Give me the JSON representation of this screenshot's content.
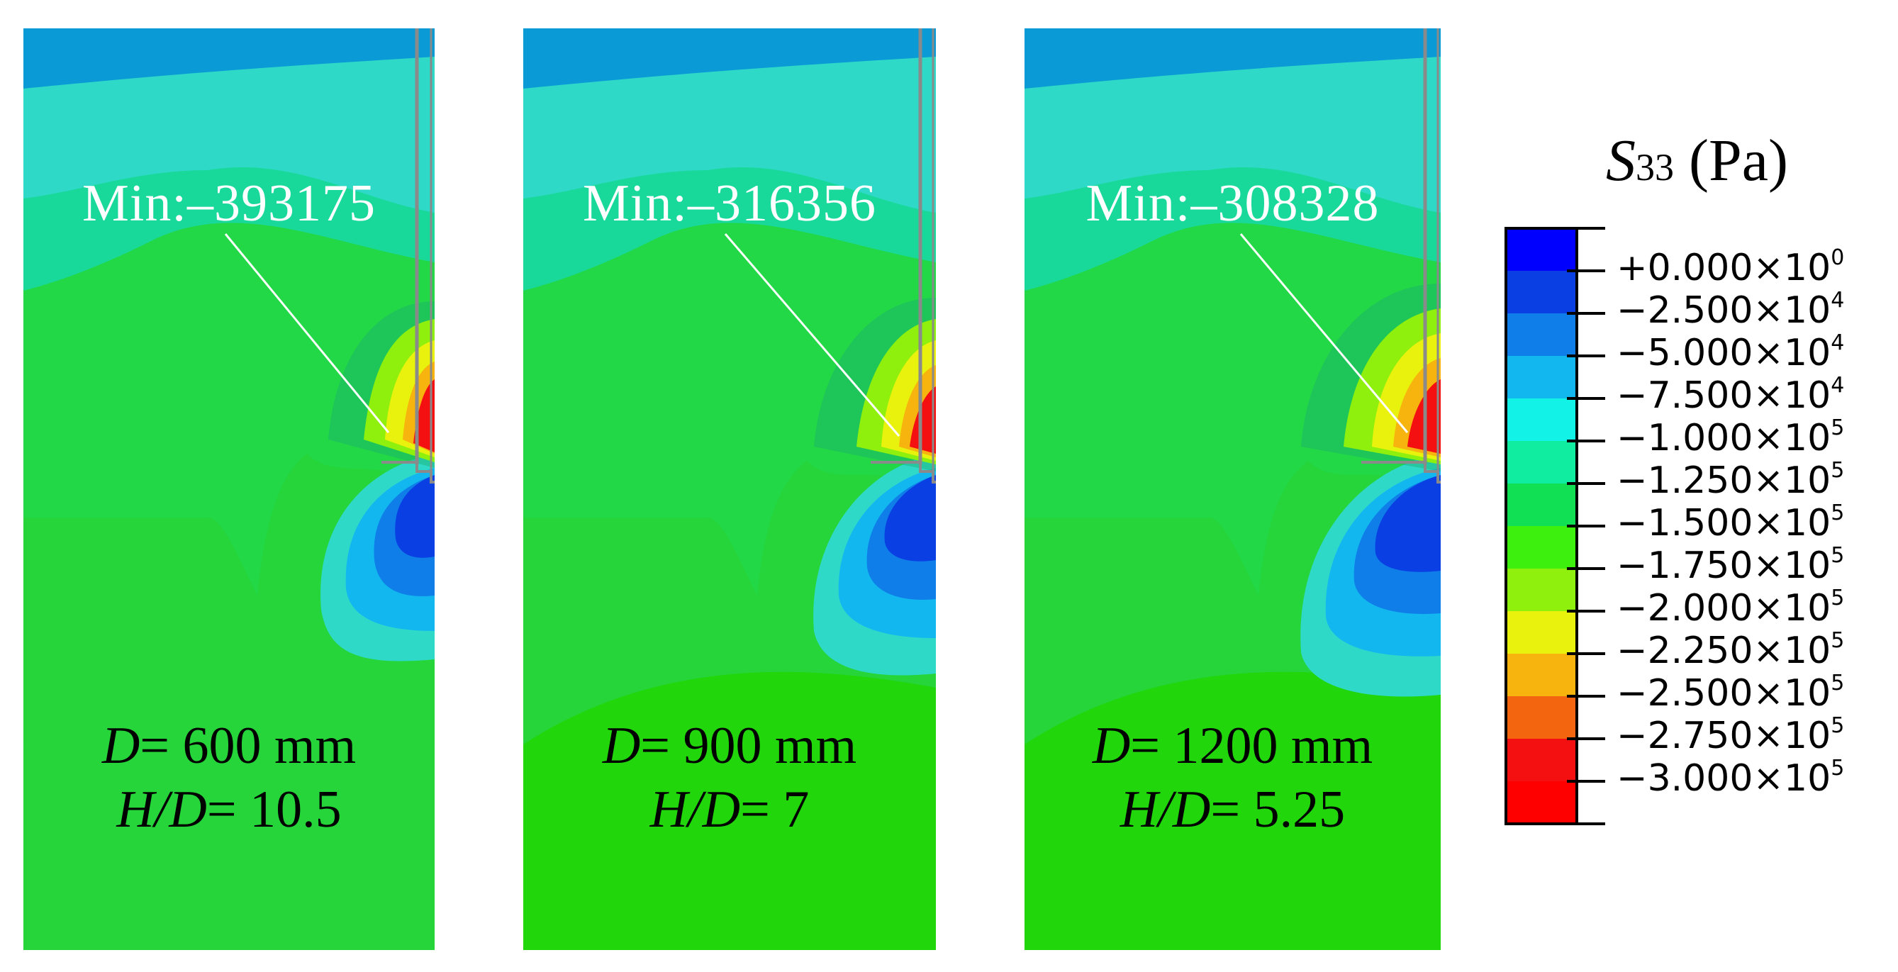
{
  "panels": [
    {
      "min_label": "Min:–393175",
      "d_symbol": "D",
      "d_value": "= 600 mm",
      "hd_symbol": "H/D",
      "hd_value": "= 10.5"
    },
    {
      "min_label": "Min:–316356",
      "d_symbol": "D",
      "d_value": "= 900 mm",
      "hd_symbol": "H/D",
      "hd_value": "= 7"
    },
    {
      "min_label": "Min:–308328",
      "d_symbol": "D",
      "d_value": "= 1200 mm",
      "hd_symbol": "H/D",
      "hd_value": "= 5.25"
    }
  ],
  "legend": {
    "title_symbol": "S",
    "title_subscript": "33",
    "title_unit": "(Pa)",
    "levels": [
      {
        "mantissa": "+0.000×10",
        "exponent": "0",
        "color": "#0000ff"
      },
      {
        "mantissa": "−2.500×10",
        "exponent": "4",
        "color": "#0a3fe3"
      },
      {
        "mantissa": "−5.000×10",
        "exponent": "4",
        "color": "#0f7ee8"
      },
      {
        "mantissa": "−7.500×10",
        "exponent": "4",
        "color": "#12b7f0"
      },
      {
        "mantissa": "−1.000×10",
        "exponent": "5",
        "color": "#13f2e6"
      },
      {
        "mantissa": "−1.250×10",
        "exponent": "5",
        "color": "#10eda1"
      },
      {
        "mantissa": "−1.500×10",
        "exponent": "5",
        "color": "#12e054"
      },
      {
        "mantissa": "−1.750×10",
        "exponent": "5",
        "color": "#3ef00e"
      },
      {
        "mantissa": "−2.000×10",
        "exponent": "5",
        "color": "#8ff00d"
      },
      {
        "mantissa": "−2.250×10",
        "exponent": "5",
        "color": "#e8f20d"
      },
      {
        "mantissa": "−2.500×10",
        "exponent": "5",
        "color": "#f7b40e"
      },
      {
        "mantissa": "−2.750×10",
        "exponent": "5",
        "color": "#f4650f"
      },
      {
        "mantissa": "−3.000×10",
        "exponent": "5",
        "color": "#f40f10"
      }
    ],
    "extra_band_color": "#ff0000"
  },
  "colors": {
    "bg_top": "#0a9ad6",
    "band_light_cyan": "#2fd9c8",
    "band_cyan_green": "#19d99a",
    "band_green": "#25d53a",
    "band_bright_green": "#21d60b",
    "pile_wall": "#8a8a8a"
  }
}
